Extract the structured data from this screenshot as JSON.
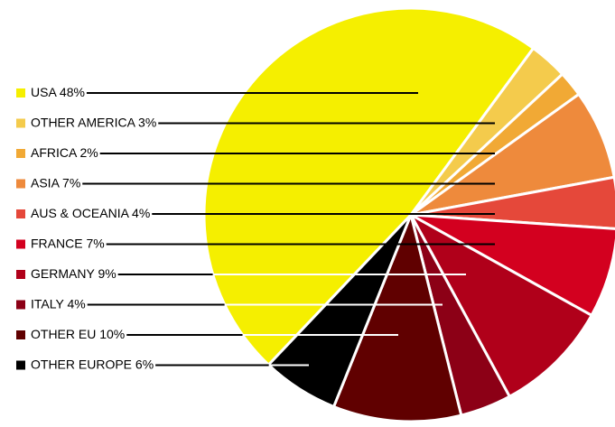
{
  "chart_data": {
    "type": "pie",
    "categories": [
      "USA",
      "OTHER AMERICA",
      "AFRICA",
      "ASIA",
      "AUS & OCEANIA",
      "FRANCE",
      "GERMANY",
      "ITALY",
      "OTHER EU",
      "OTHER EUROPE"
    ],
    "values": [
      48,
      3,
      2,
      7,
      4,
      7,
      9,
      4,
      10,
      6
    ],
    "value_labels": [
      "48%",
      "3%",
      "2%",
      "7%",
      "4%",
      "7%",
      "9%",
      "4%",
      "10%",
      "6%"
    ],
    "colors": [
      "#f5ef00",
      "#f4cb4c",
      "#f1a935",
      "#ee8a3c",
      "#e5483a",
      "#d3001f",
      "#b0001a",
      "#8c0016",
      "#600000",
      "#000000"
    ]
  }
}
